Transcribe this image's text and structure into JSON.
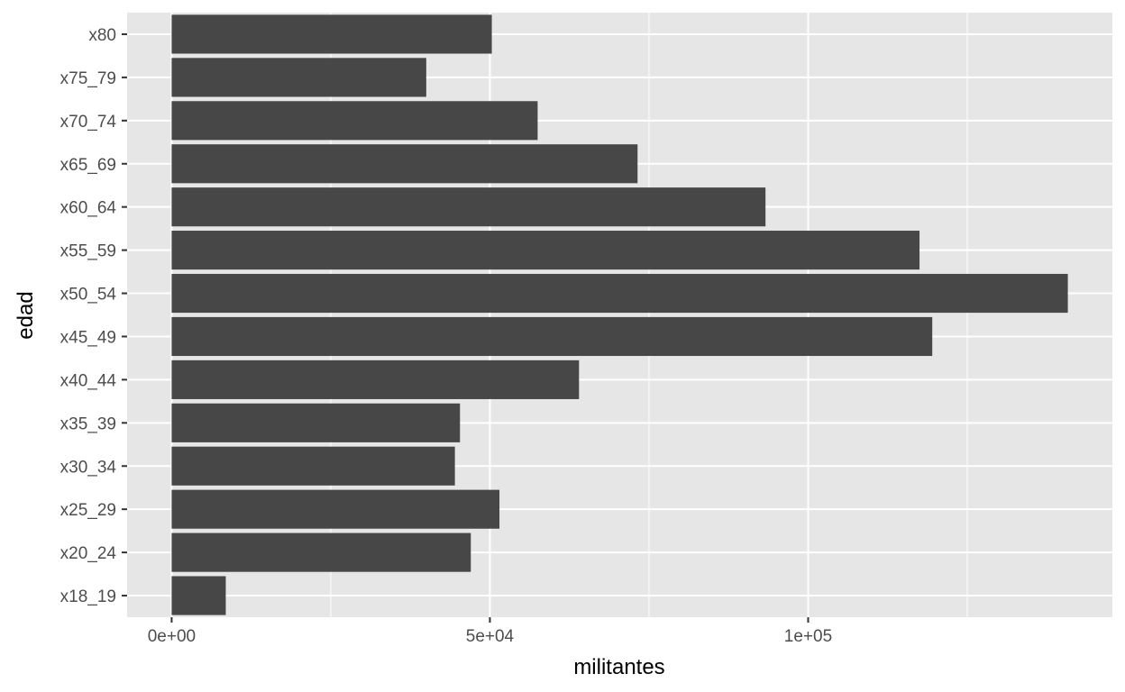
{
  "chart_data": {
    "type": "bar",
    "orientation": "horizontal",
    "xlabel": "militantes",
    "ylabel": "edad",
    "categories": [
      "x18_19",
      "x20_24",
      "x25_29",
      "x30_34",
      "x35_39",
      "x40_44",
      "x45_49",
      "x50_54",
      "x55_59",
      "x60_64",
      "x65_69",
      "x70_74",
      "x75_79",
      "x80"
    ],
    "values": [
      8500,
      47000,
      51500,
      44500,
      45300,
      64000,
      119500,
      140800,
      117500,
      93300,
      73200,
      57500,
      40000,
      50300
    ],
    "xlim": [
      -7000,
      147800
    ],
    "x_ticks": [
      0,
      50000,
      100000
    ],
    "x_tick_labels": [
      "0e+00",
      "5e+04",
      "1e+05"
    ],
    "grid": true,
    "colors": {
      "bar": "#474747",
      "panel": "#e6e6e6",
      "grid_major": "#ffffff",
      "tick": "#333333"
    }
  }
}
